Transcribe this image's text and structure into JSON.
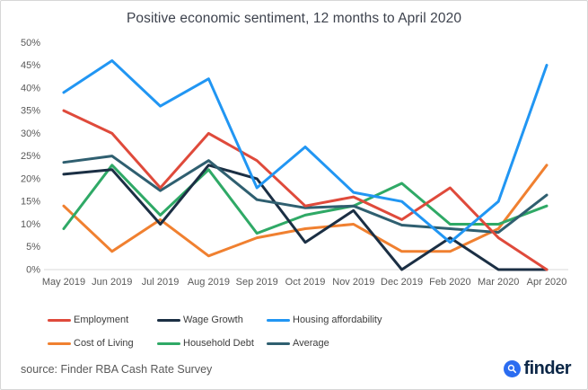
{
  "title": "Positive economic sentiment, 12 months to April 2020",
  "source_text": "source: Finder RBA Cash Rate Survey",
  "logo": {
    "text": "finder",
    "icon": "magnifier-icon",
    "badge_color": "#2b6cf0",
    "text_color": "#0c2747"
  },
  "chart_data": {
    "type": "line",
    "title": "Positive economic sentiment, 12 months to April 2020",
    "x": [
      "May 2019",
      "Jun 2019",
      "Jul 2019",
      "Aug 2019",
      "Sep 2019",
      "Oct 2019",
      "Nov 2019",
      "Dec 2019",
      "Feb 2020",
      "Mar 2020",
      "Apr 2020"
    ],
    "ylabel_ticks": [
      "50%",
      "45%",
      "40%",
      "35%",
      "30%",
      "25%",
      "20%",
      "15%",
      "10%",
      "5%",
      "0%"
    ],
    "ylim": [
      0,
      50
    ],
    "grid": false,
    "legend_position": "bottom",
    "series": [
      {
        "name": "Employment",
        "color": "#df4a3b",
        "values": [
          35,
          30,
          18,
          30,
          24,
          14,
          16,
          11,
          18,
          7,
          0
        ]
      },
      {
        "name": "Wage Growth",
        "color": "#1b2f44",
        "values": [
          21,
          22,
          10,
          23,
          20,
          6,
          13,
          0,
          7,
          0,
          0
        ]
      },
      {
        "name": "Housing affordability",
        "color": "#2196f3",
        "values": [
          39,
          46,
          36,
          42,
          18,
          27,
          17,
          15,
          6,
          15,
          45
        ]
      },
      {
        "name": "Cost of Living",
        "color": "#f08030",
        "values": [
          14,
          4,
          11,
          3,
          7,
          9,
          10,
          4,
          4,
          9,
          23
        ]
      },
      {
        "name": "Household Debt",
        "color": "#2fa966",
        "values": [
          9,
          23,
          12,
          22,
          8,
          12,
          14,
          19,
          10,
          10,
          14
        ]
      },
      {
        "name": "Average",
        "color": "#2f5f70",
        "values": [
          23.6,
          25,
          17.4,
          24,
          15.4,
          13.6,
          14,
          9.8,
          9,
          8.2,
          16.4
        ]
      }
    ]
  }
}
